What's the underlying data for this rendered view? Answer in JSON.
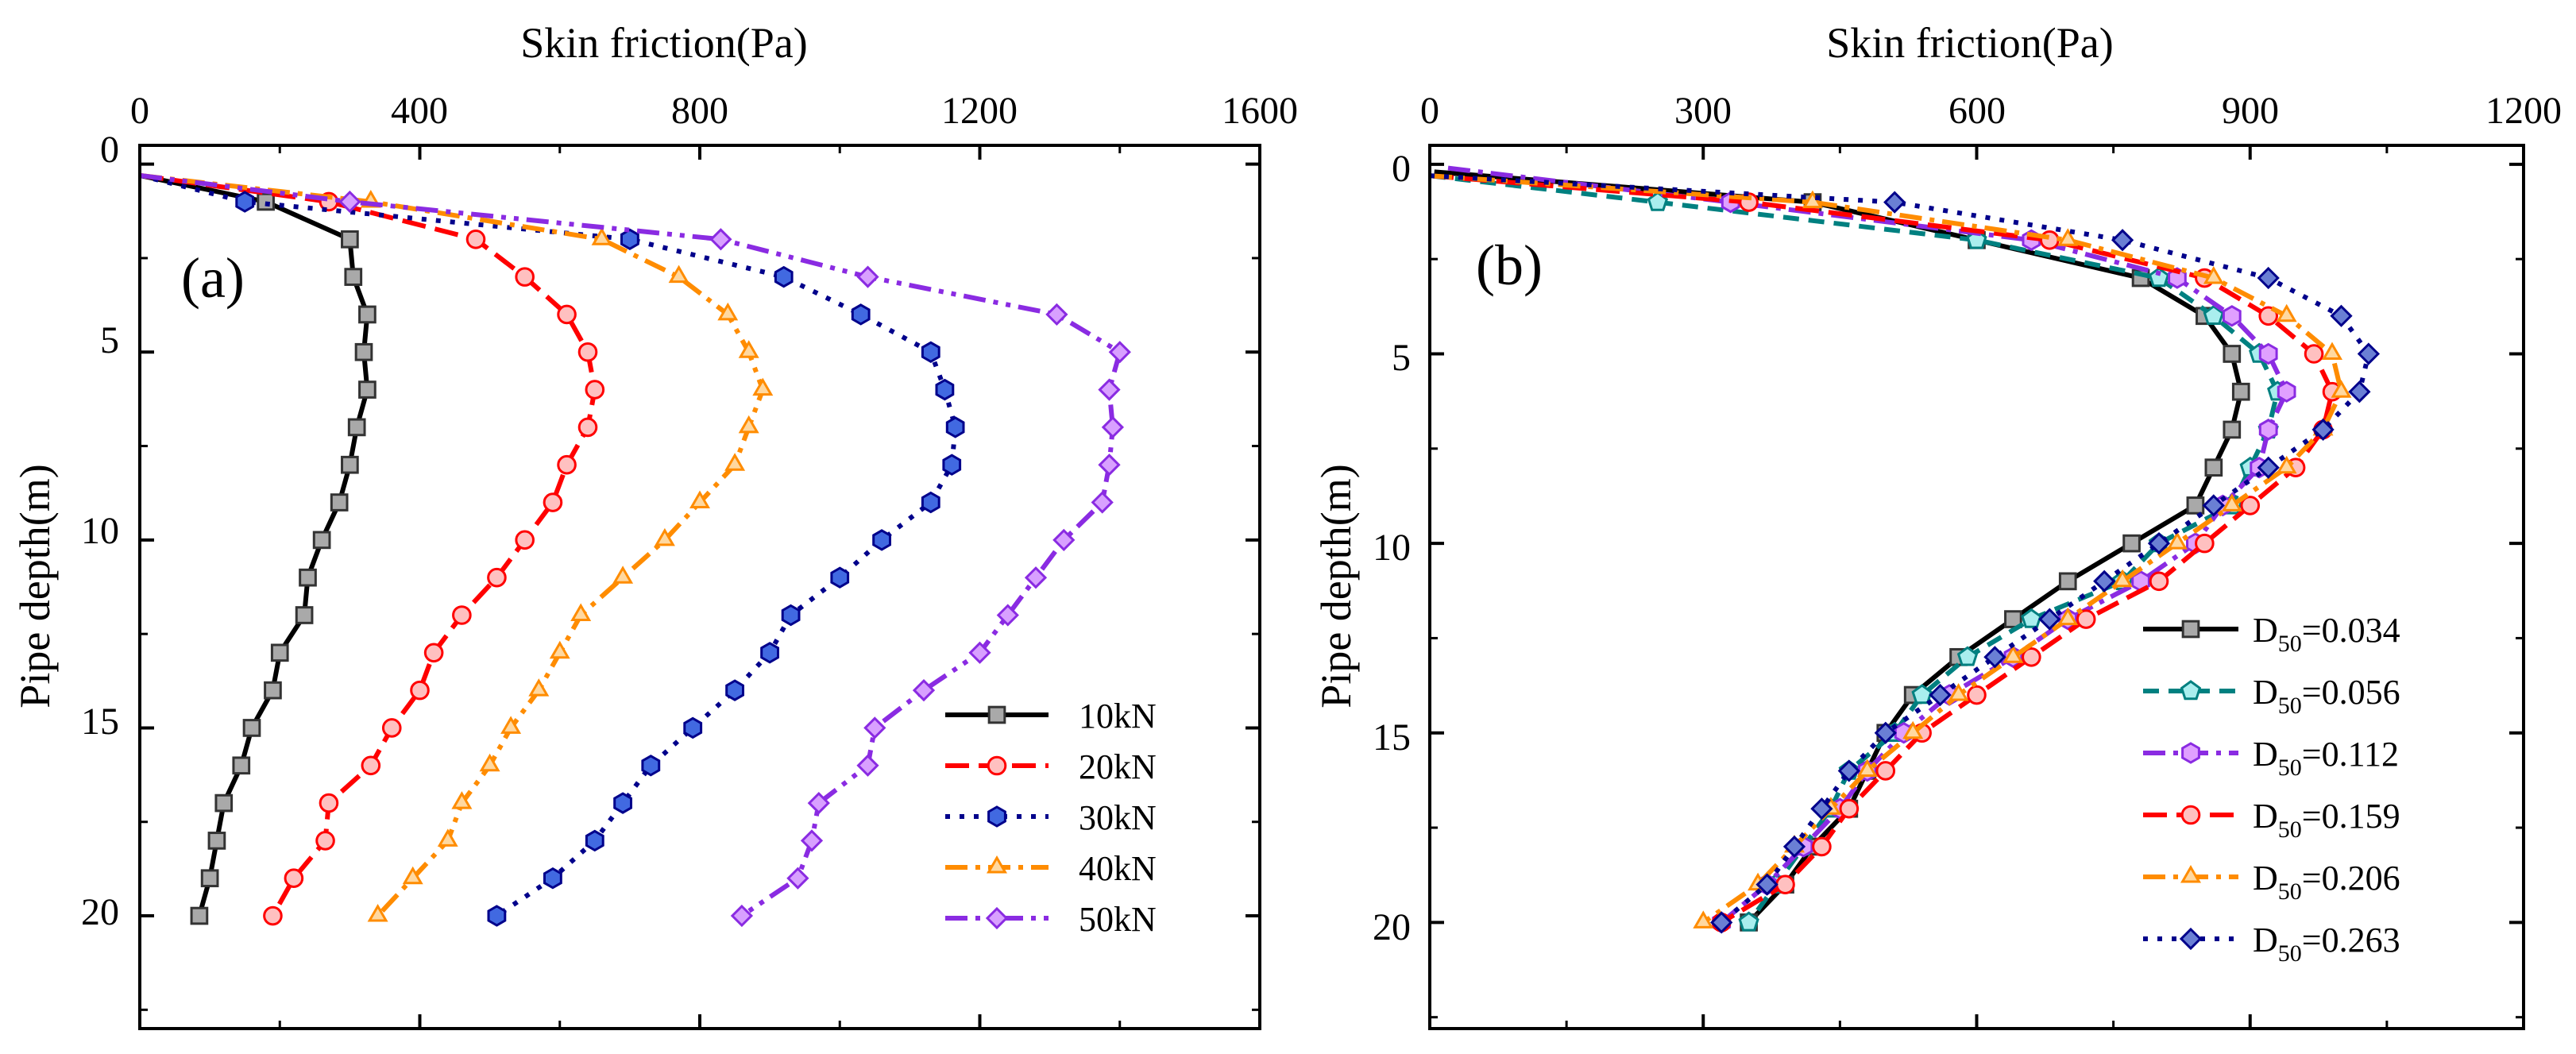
{
  "chart_data": [
    {
      "type": "line",
      "panel_label": "(a)",
      "xlabel": "Skin friction(Pa)",
      "ylabel": "Pipe depth(m)",
      "xlim": [
        0,
        1600
      ],
      "ylim": [
        -0.5,
        23
      ],
      "x_ticks": [
        0,
        400,
        800,
        1200,
        1600
      ],
      "y_ticks": [
        0,
        5,
        10,
        15,
        20
      ],
      "legend_position": "lower-right",
      "series": [
        {
          "name": "10kN",
          "label_main": "10kN",
          "label_sub": "",
          "color": "#000000",
          "dash": "solid",
          "marker": "square",
          "marker_fill": "#a9a9a9",
          "points": [
            [
              0,
              0.3
            ],
            [
              180,
              1
            ],
            [
              300,
              2
            ],
            [
              305,
              3
            ],
            [
              325,
              4
            ],
            [
              320,
              5
            ],
            [
              325,
              6
            ],
            [
              310,
              7
            ],
            [
              300,
              8
            ],
            [
              285,
              9
            ],
            [
              260,
              10
            ],
            [
              240,
              11
            ],
            [
              235,
              12
            ],
            [
              200,
              13
            ],
            [
              190,
              14
            ],
            [
              160,
              15
            ],
            [
              145,
              16
            ],
            [
              120,
              17
            ],
            [
              110,
              18
            ],
            [
              100,
              19
            ],
            [
              85,
              20
            ]
          ]
        },
        {
          "name": "20kN",
          "label_main": "20kN",
          "label_sub": "",
          "color": "#ff0000",
          "dash": "longdash",
          "marker": "circle",
          "marker_fill": "#ffc0c0",
          "points": [
            [
              0,
              0.3
            ],
            [
              270,
              1
            ],
            [
              480,
              2
            ],
            [
              550,
              3
            ],
            [
              610,
              4
            ],
            [
              640,
              5
            ],
            [
              650,
              6
            ],
            [
              640,
              7
            ],
            [
              610,
              8
            ],
            [
              590,
              9
            ],
            [
              550,
              10
            ],
            [
              510,
              11
            ],
            [
              460,
              12
            ],
            [
              420,
              13
            ],
            [
              400,
              14
            ],
            [
              360,
              15
            ],
            [
              330,
              16
            ],
            [
              270,
              17
            ],
            [
              265,
              18
            ],
            [
              220,
              19
            ],
            [
              190,
              20
            ]
          ]
        },
        {
          "name": "30kN",
          "label_main": "30kN",
          "label_sub": "",
          "color": "#00008b",
          "dash": "dot",
          "marker": "hexagon",
          "marker_fill": "#4169e1",
          "points": [
            [
              0,
              0.3
            ],
            [
              150,
              1
            ],
            [
              700,
              2
            ],
            [
              920,
              3
            ],
            [
              1030,
              4
            ],
            [
              1130,
              5
            ],
            [
              1150,
              6
            ],
            [
              1165,
              7
            ],
            [
              1160,
              8
            ],
            [
              1130,
              9
            ],
            [
              1060,
              10
            ],
            [
              1000,
              11
            ],
            [
              930,
              12
            ],
            [
              900,
              13
            ],
            [
              850,
              14
            ],
            [
              790,
              15
            ],
            [
              730,
              16
            ],
            [
              690,
              17
            ],
            [
              650,
              18
            ],
            [
              590,
              19
            ],
            [
              510,
              20
            ]
          ]
        },
        {
          "name": "40kN",
          "label_main": "40kN",
          "label_sub": "",
          "color": "#ff8c00",
          "dash": "dashdot",
          "marker": "triangle",
          "marker_fill": "#ffd8a0",
          "points": [
            [
              0,
              0.3
            ],
            [
              330,
              1
            ],
            [
              660,
              2
            ],
            [
              770,
              3
            ],
            [
              840,
              4
            ],
            [
              870,
              5
            ],
            [
              890,
              6
            ],
            [
              870,
              7
            ],
            [
              850,
              8
            ],
            [
              800,
              9
            ],
            [
              750,
              10
            ],
            [
              690,
              11
            ],
            [
              630,
              12
            ],
            [
              600,
              13
            ],
            [
              570,
              14
            ],
            [
              530,
              15
            ],
            [
              500,
              16
            ],
            [
              460,
              17
            ],
            [
              440,
              18
            ],
            [
              390,
              19
            ],
            [
              340,
              20
            ]
          ]
        },
        {
          "name": "50kN",
          "label_main": "50kN",
          "label_sub": "",
          "color": "#8a2be2",
          "dash": "dashdotdot",
          "marker": "diamond",
          "marker_fill": "#d8a0ff",
          "points": [
            [
              0,
              0.3
            ],
            [
              300,
              1
            ],
            [
              830,
              2
            ],
            [
              1040,
              3
            ],
            [
              1310,
              4
            ],
            [
              1400,
              5
            ],
            [
              1385,
              6
            ],
            [
              1390,
              7
            ],
            [
              1385,
              8
            ],
            [
              1375,
              9
            ],
            [
              1320,
              10
            ],
            [
              1280,
              11
            ],
            [
              1240,
              12
            ],
            [
              1200,
              13
            ],
            [
              1120,
              14
            ],
            [
              1050,
              15
            ],
            [
              1040,
              16
            ],
            [
              970,
              17
            ],
            [
              960,
              18
            ],
            [
              940,
              19
            ],
            [
              860,
              20
            ]
          ]
        }
      ]
    },
    {
      "type": "line",
      "panel_label": "(b)",
      "xlabel": "Skin friction(Pa)",
      "ylabel": "Pipe depth(m)",
      "xlim": [
        0,
        1200
      ],
      "ylim": [
        -0.5,
        22.8
      ],
      "x_ticks": [
        0,
        300,
        600,
        900,
        1200
      ],
      "y_ticks": [
        0,
        5,
        10,
        15,
        20
      ],
      "legend_position": "lower-right",
      "series": [
        {
          "name": "D50=0.034",
          "label_main": "D",
          "label_sub": "50",
          "label_suffix": "=0.034",
          "color": "#000000",
          "dash": "solid",
          "marker": "square",
          "marker_fill": "#a9a9a9",
          "points": [
            [
              5,
              0.2
            ],
            [
              420,
              1
            ],
            [
              600,
              2
            ],
            [
              780,
              3
            ],
            [
              850,
              4
            ],
            [
              880,
              5
            ],
            [
              890,
              6
            ],
            [
              880,
              7
            ],
            [
              860,
              8
            ],
            [
              840,
              9
            ],
            [
              770,
              10
            ],
            [
              700,
              11
            ],
            [
              640,
              12
            ],
            [
              580,
              13
            ],
            [
              530,
              14
            ],
            [
              500,
              15
            ],
            [
              480,
              16
            ],
            [
              460,
              17
            ],
            [
              420,
              18
            ],
            [
              390,
              19
            ],
            [
              350,
              20
            ]
          ]
        },
        {
          "name": "D50=0.056",
          "label_main": "D",
          "label_sub": "50",
          "label_suffix": "=0.056",
          "color": "#008080",
          "dash": "dash",
          "marker": "pentagon",
          "marker_fill": "#aaeeee",
          "points": [
            [
              0,
              0.3
            ],
            [
              250,
              1
            ],
            [
              600,
              2
            ],
            [
              800,
              3
            ],
            [
              860,
              4
            ],
            [
              910,
              5
            ],
            [
              930,
              6
            ],
            [
              920,
              7
            ],
            [
              900,
              8
            ],
            [
              880,
              9
            ],
            [
              800,
              10
            ],
            [
              760,
              11
            ],
            [
              660,
              12
            ],
            [
              590,
              13
            ],
            [
              540,
              14
            ],
            [
              510,
              15
            ],
            [
              460,
              16
            ],
            [
              440,
              17
            ],
            [
              410,
              18
            ],
            [
              380,
              19
            ],
            [
              350,
              20
            ]
          ]
        },
        {
          "name": "D50=0.112",
          "label_main": "D",
          "label_sub": "50",
          "label_suffix": "=0.112",
          "color": "#8a2be2",
          "dash": "dashdot",
          "marker": "hexagon",
          "marker_fill": "#e0a0ff",
          "points": [
            [
              20,
              0.1
            ],
            [
              330,
              1
            ],
            [
              660,
              2
            ],
            [
              820,
              3
            ],
            [
              880,
              4
            ],
            [
              920,
              5
            ],
            [
              940,
              6
            ],
            [
              920,
              7
            ],
            [
              910,
              8
            ],
            [
              870,
              9
            ],
            [
              840,
              10
            ],
            [
              780,
              11
            ],
            [
              700,
              12
            ],
            [
              640,
              13
            ],
            [
              570,
              14
            ],
            [
              520,
              15
            ],
            [
              480,
              16
            ],
            [
              450,
              17
            ],
            [
              410,
              18
            ],
            [
              370,
              19
            ],
            [
              320,
              20
            ]
          ]
        },
        {
          "name": "D50=0.159",
          "label_main": "D",
          "label_sub": "50",
          "label_suffix": "=0.159",
          "color": "#ff0000",
          "dash": "longdash",
          "marker": "circle",
          "marker_fill": "#ffc0c0",
          "points": [
            [
              0,
              0.3
            ],
            [
              350,
              1
            ],
            [
              680,
              2
            ],
            [
              850,
              3
            ],
            [
              920,
              4
            ],
            [
              970,
              5
            ],
            [
              990,
              6
            ],
            [
              980,
              7
            ],
            [
              950,
              8
            ],
            [
              900,
              9
            ],
            [
              850,
              10
            ],
            [
              800,
              11
            ],
            [
              720,
              12
            ],
            [
              660,
              13
            ],
            [
              600,
              14
            ],
            [
              540,
              15
            ],
            [
              500,
              16
            ],
            [
              460,
              17
            ],
            [
              430,
              18
            ],
            [
              390,
              19
            ],
            [
              320,
              20
            ]
          ]
        },
        {
          "name": "D50=0.206",
          "label_main": "D",
          "label_sub": "50",
          "label_suffix": "=0.206",
          "color": "#ff8c00",
          "dash": "dashdot",
          "marker": "triangle",
          "marker_fill": "#ffd8a0",
          "points": [
            [
              0,
              0.3
            ],
            [
              420,
              1
            ],
            [
              700,
              2
            ],
            [
              860,
              3
            ],
            [
              940,
              4
            ],
            [
              990,
              5
            ],
            [
              1000,
              6
            ],
            [
              980,
              7
            ],
            [
              940,
              8
            ],
            [
              880,
              9
            ],
            [
              820,
              10
            ],
            [
              760,
              11
            ],
            [
              700,
              12
            ],
            [
              640,
              13
            ],
            [
              580,
              14
            ],
            [
              530,
              15
            ],
            [
              480,
              16
            ],
            [
              440,
              17
            ],
            [
              400,
              18
            ],
            [
              360,
              19
            ],
            [
              300,
              20
            ]
          ]
        },
        {
          "name": "D50=0.263",
          "label_main": "D",
          "label_sub": "50",
          "label_suffix": "=0.263",
          "color": "#00008b",
          "dash": "dot",
          "marker": "diamond",
          "marker_fill": "#6a7fd4",
          "points": [
            [
              0,
              0.3
            ],
            [
              510,
              1
            ],
            [
              760,
              2
            ],
            [
              920,
              3
            ],
            [
              1000,
              4
            ],
            [
              1030,
              5
            ],
            [
              1020,
              6
            ],
            [
              980,
              7
            ],
            [
              920,
              8
            ],
            [
              860,
              9
            ],
            [
              800,
              10
            ],
            [
              740,
              11
            ],
            [
              680,
              12
            ],
            [
              620,
              13
            ],
            [
              560,
              14
            ],
            [
              500,
              15
            ],
            [
              460,
              16
            ],
            [
              430,
              17
            ],
            [
              400,
              18
            ],
            [
              370,
              19
            ],
            [
              320,
              20
            ]
          ]
        }
      ]
    }
  ]
}
